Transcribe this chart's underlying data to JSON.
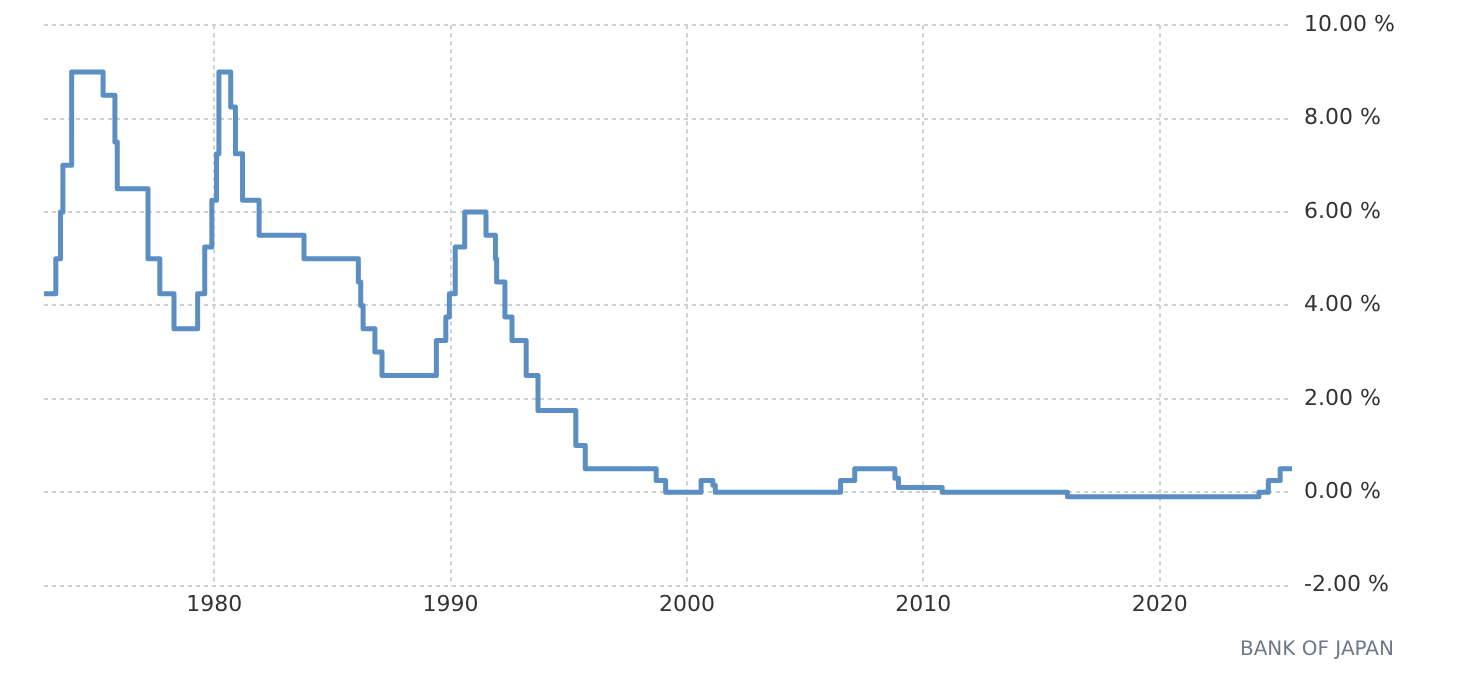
{
  "chart_data": {
    "type": "step",
    "x": [
      1972.8,
      1973.3,
      1973.5,
      1973.6,
      1973.97,
      1975.3,
      1975.8,
      1975.9,
      1977.2,
      1977.7,
      1978.3,
      1979.3,
      1979.6,
      1979.9,
      1980.1,
      1980.2,
      1980.7,
      1980.9,
      1981.2,
      1981.9,
      1983.8,
      1986.1,
      1986.2,
      1986.3,
      1986.8,
      1987.1,
      1989.4,
      1989.8,
      1989.95,
      1990.2,
      1990.6,
      1991.5,
      1991.9,
      1991.95,
      1992.3,
      1992.6,
      1993.2,
      1993.7,
      1995.3,
      1995.7,
      1998.7,
      1999.1,
      2000.6,
      2001.1,
      2001.2,
      2006.5,
      2007.1,
      2008.8,
      2008.95,
      2010.8,
      2016.1,
      2024.2,
      2024.6,
      2025.1,
      2025.6
    ],
    "series": [
      {
        "color": "#5b8fc4",
        "values": [
          4.25,
          5.0,
          6.0,
          7.0,
          9.0,
          8.5,
          7.5,
          6.5,
          5.0,
          4.25,
          3.5,
          4.25,
          5.25,
          6.25,
          7.25,
          9.0,
          8.25,
          7.25,
          6.25,
          5.5,
          5.0,
          4.5,
          4.0,
          3.5,
          3.0,
          2.5,
          3.25,
          3.75,
          4.25,
          5.25,
          6.0,
          5.5,
          5.0,
          4.5,
          3.75,
          3.25,
          2.5,
          1.75,
          1.0,
          0.5,
          0.25,
          0.0,
          0.25,
          0.15,
          0.0,
          0.25,
          0.5,
          0.3,
          0.1,
          0.0,
          -0.1,
          0.0,
          0.25,
          0.5,
          0.5
        ]
      }
    ],
    "xlim": [
      1972.8,
      2025.6
    ],
    "xticks": [
      1980,
      1990,
      2000,
      2010,
      2020
    ],
    "ylim": [
      -2,
      10
    ],
    "yticks": [
      {
        "value": -2,
        "label": "-2.00 %"
      },
      {
        "value": 0,
        "label": "0.00 %"
      },
      {
        "value": 2,
        "label": "2.00 %"
      },
      {
        "value": 4,
        "label": "4.00 %"
      },
      {
        "value": 6,
        "label": "6.00 %"
      },
      {
        "value": 8,
        "label": "8.00 %"
      },
      {
        "value": 10,
        "label": "10.00 %"
      }
    ],
    "grid": true,
    "legend": false,
    "marker": "none",
    "line_style": "solid",
    "annotations": [
      "BANK OF JAPAN"
    ]
  }
}
